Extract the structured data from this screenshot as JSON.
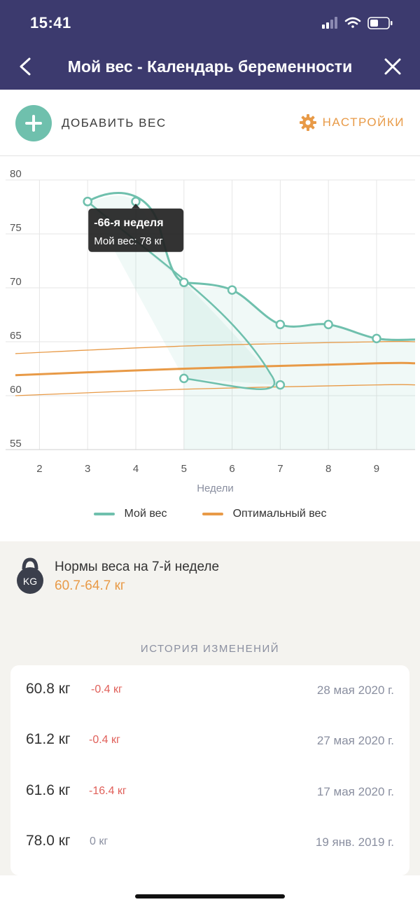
{
  "status_bar": {
    "time": "15:41"
  },
  "nav": {
    "title": "Мой вес - Календарь беременности"
  },
  "actions": {
    "add_label": "ДОБАВИТЬ ВЕС",
    "settings_label": "НАСТРОЙКИ"
  },
  "colors": {
    "header": "#3c3a6e",
    "my_weight": "#6fc0ad",
    "optimal": "#e89a47",
    "negative": "#e0605a"
  },
  "icons": {
    "back": "chevron-left-icon",
    "close": "close-icon",
    "add": "plus-icon",
    "settings": "gear-icon",
    "weight": "kettlebell-icon"
  },
  "chart_data": {
    "type": "line",
    "xlabel": "Недели",
    "ylabel": "",
    "xlim": [
      1.5,
      9.8
    ],
    "ylim": [
      55,
      80
    ],
    "x_ticks": [
      "2",
      "3",
      "4",
      "5",
      "6",
      "7",
      "8",
      "9"
    ],
    "y_ticks": [
      "80",
      "75",
      "70",
      "65",
      "60",
      "55"
    ],
    "series": [
      {
        "name": "Мой вес",
        "points": [
          [
            3,
            78
          ],
          [
            4,
            78
          ],
          [
            5,
            70.5
          ],
          [
            6,
            69.8
          ],
          [
            7,
            66.6
          ],
          [
            8,
            66.6
          ],
          [
            9,
            65.3
          ]
        ]
      },
      {
        "name": "Мой вес",
        "points": [
          [
            3,
            78
          ],
          [
            7,
            61
          ],
          [
            5,
            61.6
          ]
        ]
      },
      {
        "name": "Оптимальный вес",
        "upper": [
          [
            1.5,
            63.9
          ],
          [
            5,
            64.6
          ],
          [
            9,
            65
          ],
          [
            9.8,
            65
          ]
        ],
        "mid": [
          [
            1.5,
            61.9
          ],
          [
            5,
            62.5
          ],
          [
            9,
            63
          ],
          [
            9.8,
            63
          ]
        ],
        "lower": [
          [
            1.5,
            60
          ],
          [
            5,
            60.6
          ],
          [
            9,
            61
          ],
          [
            9.8,
            61
          ]
        ]
      }
    ],
    "tooltip": {
      "title": "-66-я неделя",
      "text": "Мой вес: 78 кг"
    },
    "legend": [
      "Мой вес",
      "Оптимальный вес"
    ]
  },
  "norm": {
    "title": "Нормы веса на 7-й неделе",
    "value": "60.7-64.7 кг",
    "badge": "KG"
  },
  "history": {
    "heading": "ИСТОРИЯ ИЗМЕНЕНИЙ",
    "rows": [
      {
        "weight": "60.8 кг",
        "delta": "-0.4 кг",
        "date": "28 мая 2020 г.",
        "negative": true
      },
      {
        "weight": "61.2 кг",
        "delta": "-0.4 кг",
        "date": "27 мая 2020 г.",
        "negative": true
      },
      {
        "weight": "61.6 кг",
        "delta": "-16.4 кг",
        "date": "17 мая 2020 г.",
        "negative": true
      },
      {
        "weight": "78.0 кг",
        "delta": "0 кг",
        "date": "19 янв. 2019 г.",
        "negative": false
      }
    ]
  }
}
